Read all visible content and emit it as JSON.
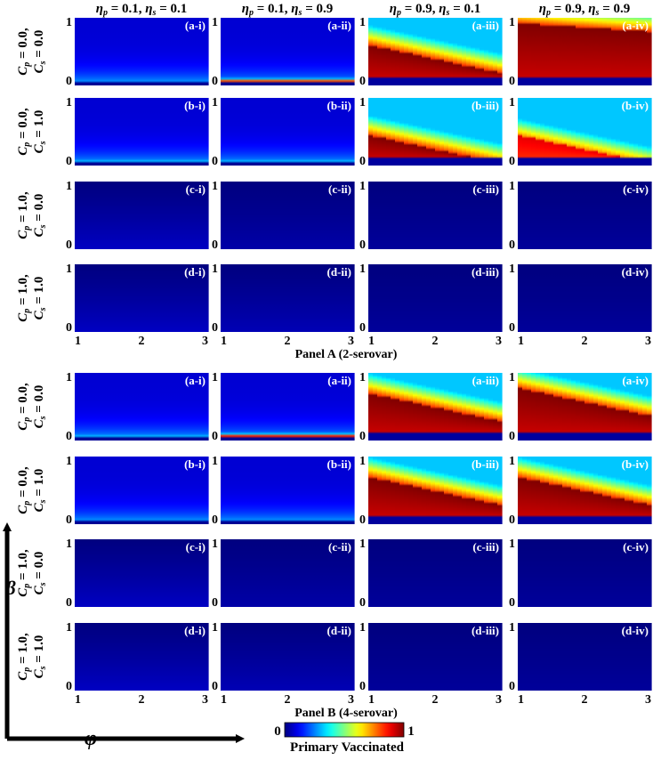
{
  "chart_data": {
    "type": "heatmap",
    "title": "Primary Vaccinated",
    "xlabel": "φ",
    "ylabel": "β",
    "xlim": [
      1,
      3
    ],
    "ylim": [
      0,
      1
    ],
    "x_ticks": [
      "1",
      "2",
      "3"
    ],
    "y_ticks": [
      "1",
      "0"
    ],
    "colorbar": {
      "label": "Primary Vaccinated",
      "min_label": "0",
      "max_label": "1",
      "colormap": "jet"
    },
    "columns": [
      {
        "eta_p": "0.1",
        "eta_s": "0.1"
      },
      {
        "eta_p": "0.1",
        "eta_s": "0.9"
      },
      {
        "eta_p": "0.9",
        "eta_s": "0.1"
      },
      {
        "eta_p": "0.9",
        "eta_s": "0.9"
      }
    ],
    "rows": [
      {
        "letter": "a",
        "cp": "0.0",
        "cs": "0.0"
      },
      {
        "letter": "b",
        "cp": "0.0",
        "cs": "1.0"
      },
      {
        "letter": "c",
        "cp": "1.0",
        "cs": "0.0"
      },
      {
        "letter": "d",
        "cp": "1.0",
        "cs": "1.0"
      }
    ],
    "col_suffix": [
      "i",
      "ii",
      "iii",
      "iv"
    ],
    "panels": [
      {
        "title": "Panel A (2-serovar)",
        "maps": [
          [
            {
              "kind": "thin",
              "peak": 0.25
            },
            {
              "kind": "thin",
              "peak": 0.8
            },
            {
              "kind": "band",
              "peak": 1.0,
              "cap": 0.6
            },
            {
              "kind": "band",
              "peak": 1.0,
              "cap": 0.92
            }
          ],
          [
            {
              "kind": "thin",
              "peak": 0.3
            },
            {
              "kind": "thin",
              "peak": 0.3
            },
            {
              "kind": "band",
              "peak": 1.0,
              "cap": 0.45
            },
            {
              "kind": "band",
              "peak": 0.9,
              "cap": 0.45
            }
          ],
          [
            {
              "kind": "flat",
              "peak": 0.05
            },
            {
              "kind": "flat",
              "peak": 0.03
            },
            {
              "kind": "flat",
              "peak": 0.02
            },
            {
              "kind": "flat",
              "peak": 0.02
            }
          ],
          [
            {
              "kind": "flat",
              "peak": 0.05
            },
            {
              "kind": "flat",
              "peak": 0.04
            },
            {
              "kind": "flat",
              "peak": 0.02
            },
            {
              "kind": "flat",
              "peak": 0.02
            }
          ]
        ]
      },
      {
        "title": "Panel B (4-serovar)",
        "maps": [
          [
            {
              "kind": "thin",
              "peak": 0.3
            },
            {
              "kind": "thin",
              "peak": 0.85
            },
            {
              "kind": "band",
              "peak": 1.0,
              "cap": 0.7
            },
            {
              "kind": "band",
              "peak": 1.0,
              "cap": 0.78
            }
          ],
          [
            {
              "kind": "thin",
              "peak": 0.25
            },
            {
              "kind": "thin",
              "peak": 0.25
            },
            {
              "kind": "band",
              "peak": 1.0,
              "cap": 0.7
            },
            {
              "kind": "band",
              "peak": 1.0,
              "cap": 0.7
            }
          ],
          [
            {
              "kind": "flat",
              "peak": 0.05
            },
            {
              "kind": "flat",
              "peak": 0.03
            },
            {
              "kind": "flat",
              "peak": 0.02
            },
            {
              "kind": "flat",
              "peak": 0.02
            }
          ],
          [
            {
              "kind": "flat",
              "peak": 0.05
            },
            {
              "kind": "flat",
              "peak": 0.04
            },
            {
              "kind": "flat",
              "peak": 0.02
            },
            {
              "kind": "flat",
              "peak": 0.02
            }
          ]
        ]
      }
    ]
  }
}
